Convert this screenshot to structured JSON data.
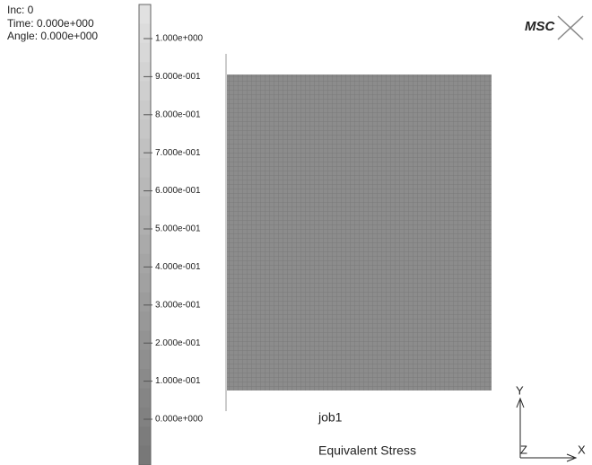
{
  "info": {
    "inc": "Inc:  0",
    "time": "Time:  0.000e+000",
    "angle": "Angle:  0.000e+000"
  },
  "legend": {
    "labels": [
      "1.000e+000",
      "9.000e-001",
      "8.000e-001",
      "7.000e-001",
      "6.000e-001",
      "5.000e-001",
      "4.000e-001",
      "3.000e-001",
      "2.000e-001",
      "1.000e-001",
      "0.000e+000"
    ]
  },
  "logo": "MSC",
  "job": "job1",
  "result": "Equivalent Stress",
  "axes": {
    "y": "Y",
    "z": "Z",
    "x": "X"
  }
}
